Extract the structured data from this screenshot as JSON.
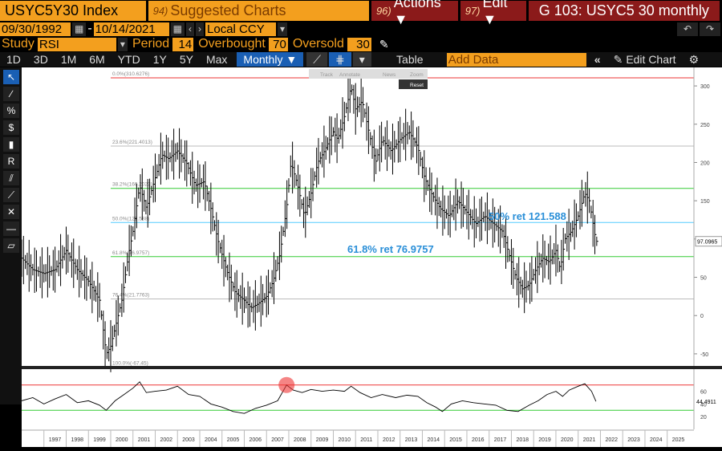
{
  "header": {
    "ticker": "USYC5Y30 Index",
    "suggested_num": "94)",
    "suggested": "Suggested Charts",
    "actions_num": "96)",
    "actions": "Actions ▼",
    "edit_num": "97)",
    "edit": "Edit ▼",
    "title": "G 103: USYC5 30 monthly"
  },
  "range": {
    "start": "09/30/1992",
    "end": "10/14/2021",
    "currency": "Local CCY"
  },
  "study": {
    "label": "Study",
    "value": "RSI",
    "period_label": "Period",
    "period": "14",
    "overbought_label": "Overbought",
    "overbought": "70",
    "oversold_label": "Oversold",
    "oversold": "30"
  },
  "periods": [
    "1D",
    "3D",
    "1M",
    "6M",
    "YTD",
    "1Y",
    "5Y",
    "Max"
  ],
  "frequency": "Monthly ▼",
  "table_label": "Table",
  "add_data_placeholder": "Add Data",
  "edit_chart": "Edit Chart",
  "toolbar_mini": {
    "track": "Track",
    "annotate": "Annotate",
    "news": "News",
    "zoom": "Zoom",
    "reset": "Reset"
  },
  "chart_data": {
    "type": "line",
    "x": [
      "1997",
      "1998",
      "1999",
      "2000",
      "2001",
      "2002",
      "2003",
      "2004",
      "2005",
      "2006",
      "2007",
      "2008",
      "2009",
      "2010",
      "2011",
      "2012",
      "2013",
      "2014",
      "2015",
      "2016",
      "2017",
      "2018",
      "2019",
      "2020",
      "2021",
      "2022",
      "2023",
      "2024",
      "2025"
    ],
    "y_ticks": [
      "300",
      "250",
      "200",
      "150",
      "100",
      "50",
      "0",
      "-50"
    ],
    "ylim": [
      -70,
      320
    ],
    "last_value": "97.0965",
    "fib_levels": [
      {
        "label": "0.0%(310.6276)",
        "value": 310.6276,
        "color": "#e33"
      },
      {
        "label": "23.6%(221.4013)",
        "value": 221.4013,
        "color": "#bbb"
      },
      {
        "label": "38.2%(166.2023)",
        "value": 166.2023,
        "color": "#3c3"
      },
      {
        "label": "50.0%(121.588)",
        "value": 121.588,
        "color": "#5cf"
      },
      {
        "label": "61.8%(76.9757)",
        "value": 76.9757,
        "color": "#3c3"
      },
      {
        "label": "76.4%(21.7763)",
        "value": 21.7763,
        "color": "#bbb"
      },
      {
        "label": "100.0%(-67.45)",
        "value": -67.45,
        "color": "#e33"
      }
    ],
    "annotations": [
      "50% ret 121.588",
      "61.8% ret 76.9757"
    ],
    "series_points": [
      [
        1996,
        75
      ],
      [
        1996.5,
        60
      ],
      [
        1997,
        55
      ],
      [
        1997.5,
        60
      ],
      [
        1998,
        85
      ],
      [
        1998.5,
        60
      ],
      [
        1999,
        45
      ],
      [
        1999.5,
        20
      ],
      [
        1999.8,
        -50
      ],
      [
        2000,
        -40
      ],
      [
        2000.5,
        20
      ],
      [
        2000.8,
        80
      ],
      [
        2001,
        110
      ],
      [
        2001.3,
        170
      ],
      [
        2001.6,
        140
      ],
      [
        2002,
        180
      ],
      [
        2002.3,
        210
      ],
      [
        2002.6,
        205
      ],
      [
        2003,
        215
      ],
      [
        2003.4,
        200
      ],
      [
        2003.8,
        170
      ],
      [
        2004.2,
        175
      ],
      [
        2004.5,
        140
      ],
      [
        2004.8,
        100
      ],
      [
        2005.2,
        60
      ],
      [
        2005.6,
        30
      ],
      [
        2006,
        20
      ],
      [
        2006.3,
        10
      ],
      [
        2006.6,
        15
      ],
      [
        2007,
        25
      ],
      [
        2007.3,
        45
      ],
      [
        2007.6,
        80
      ],
      [
        2007.9,
        140
      ],
      [
        2008.1,
        200
      ],
      [
        2008.4,
        170
      ],
      [
        2008.7,
        130
      ],
      [
        2009,
        160
      ],
      [
        2009.3,
        200
      ],
      [
        2009.6,
        215
      ],
      [
        2010,
        240
      ],
      [
        2010.2,
        230
      ],
      [
        2010.5,
        260
      ],
      [
        2010.8,
        300
      ],
      [
        2011,
        270
      ],
      [
        2011.3,
        280
      ],
      [
        2011.6,
        240
      ],
      [
        2011.9,
        200
      ],
      [
        2012.2,
        230
      ],
      [
        2012.6,
        215
      ],
      [
        2013,
        230
      ],
      [
        2013.4,
        240
      ],
      [
        2013.8,
        220
      ],
      [
        2014.1,
        180
      ],
      [
        2014.4,
        160
      ],
      [
        2014.8,
        140
      ],
      [
        2015.2,
        130
      ],
      [
        2015.6,
        150
      ],
      [
        2016,
        135
      ],
      [
        2016.4,
        120
      ],
      [
        2016.8,
        130
      ],
      [
        2017.2,
        120
      ],
      [
        2017.6,
        110
      ],
      [
        2017.9,
        80
      ],
      [
        2018.2,
        50
      ],
      [
        2018.5,
        35
      ],
      [
        2018.8,
        40
      ],
      [
        2019.1,
        60
      ],
      [
        2019.4,
        75
      ],
      [
        2019.7,
        70
      ],
      [
        2020,
        85
      ],
      [
        2020.2,
        60
      ],
      [
        2020.4,
        100
      ],
      [
        2020.7,
        110
      ],
      [
        2021,
        130
      ],
      [
        2021.3,
        160
      ],
      [
        2021.5,
        150
      ],
      [
        2021.8,
        97
      ]
    ],
    "rsi": {
      "ticks": [
        "60",
        "40",
        "20"
      ],
      "overbought": 70,
      "oversold": 30,
      "last_value": "44.4911",
      "points": [
        [
          1996,
          45
        ],
        [
          1996.5,
          50
        ],
        [
          1997,
          40
        ],
        [
          1997.5,
          48
        ],
        [
          1998,
          55
        ],
        [
          1998.5,
          42
        ],
        [
          1999,
          45
        ],
        [
          1999.5,
          38
        ],
        [
          1999.8,
          30
        ],
        [
          2000.2,
          45
        ],
        [
          2000.6,
          55
        ],
        [
          2001,
          65
        ],
        [
          2001.3,
          75
        ],
        [
          2001.6,
          58
        ],
        [
          2002,
          60
        ],
        [
          2002.5,
          62
        ],
        [
          2003,
          68
        ],
        [
          2003.5,
          55
        ],
        [
          2004,
          52
        ],
        [
          2004.5,
          40
        ],
        [
          2005,
          35
        ],
        [
          2005.5,
          28
        ],
        [
          2006,
          25
        ],
        [
          2006.5,
          33
        ],
        [
          2007,
          38
        ],
        [
          2007.5,
          45
        ],
        [
          2007.9,
          70
        ],
        [
          2008.2,
          62
        ],
        [
          2008.6,
          58
        ],
        [
          2009,
          63
        ],
        [
          2009.5,
          60
        ],
        [
          2010,
          62
        ],
        [
          2010.5,
          60
        ],
        [
          2010.8,
          68
        ],
        [
          2011.2,
          58
        ],
        [
          2011.7,
          50
        ],
        [
          2012.2,
          55
        ],
        [
          2012.8,
          50
        ],
        [
          2013.3,
          54
        ],
        [
          2013.8,
          52
        ],
        [
          2014.2,
          42
        ],
        [
          2014.6,
          35
        ],
        [
          2014.9,
          28
        ],
        [
          2015.3,
          40
        ],
        [
          2015.8,
          45
        ],
        [
          2016.3,
          42
        ],
        [
          2016.8,
          40
        ],
        [
          2017.3,
          38
        ],
        [
          2017.8,
          30
        ],
        [
          2018.3,
          28
        ],
        [
          2018.8,
          38
        ],
        [
          2019.2,
          45
        ],
        [
          2019.6,
          55
        ],
        [
          2020,
          60
        ],
        [
          2020.3,
          52
        ],
        [
          2020.6,
          62
        ],
        [
          2021,
          68
        ],
        [
          2021.3,
          72
        ],
        [
          2021.6,
          60
        ],
        [
          2021.8,
          44
        ]
      ]
    },
    "xlabel": "",
    "ylabel": ""
  },
  "colors": {
    "orange": "#f39f1e",
    "darkred": "#8b1a1a",
    "blue": "#1a5fb4"
  }
}
